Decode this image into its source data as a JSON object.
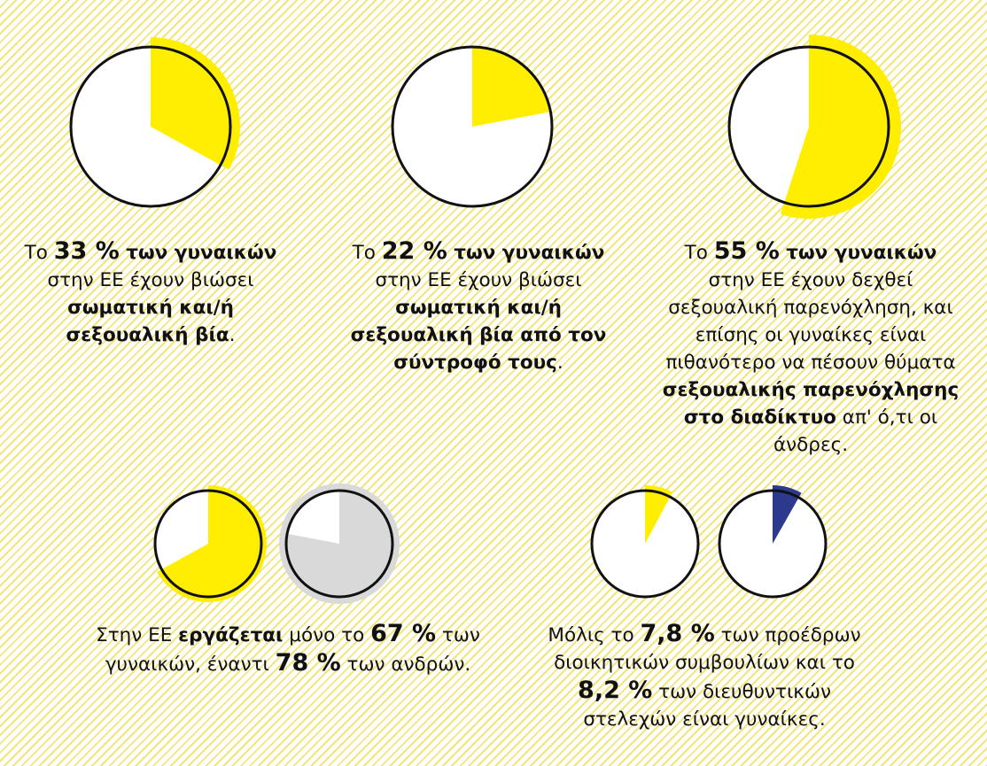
{
  "colors": {
    "women": "#ffee00",
    "men": "#d9d9d9",
    "men_blue": "#2b3a8c",
    "outline": "#111111",
    "background_stripe": "#f3e57a"
  },
  "chart_data": [
    {
      "type": "pie",
      "slices": [
        {
          "name": "",
          "value": 33,
          "color": "#ffee00"
        }
      ],
      "caption": [
        "Το 33 % των γυναικών",
        "στην ΕΕ έχουν βιώσει",
        "σωματική και/ή",
        "σεξουαλική βία."
      ]
    },
    {
      "type": "pie",
      "slices": [
        {
          "name": "",
          "value": 22,
          "color": "#ffee00"
        }
      ],
      "caption": [
        "Το 22 % των γυναικών",
        "στην ΕΕ έχουν βιώσει",
        "σωματική και/ή",
        "σεξουαλική βία από τον",
        "σύντροφό τους."
      ]
    },
    {
      "type": "pie",
      "slices": [
        {
          "name": "",
          "value": 55,
          "color": "#ffee00"
        }
      ],
      "caption": [
        "Το 55 % των γυναικών",
        "στην ΕΕ έχουν δεχθεί",
        "σεξουαλική παρενόχληση, και",
        "επίσης οι γυναίκες είναι",
        "πιθανότερο να πέσουν θύματα",
        "σεξουαλικής παρενόχλησης",
        "στο διαδίκτυο απ' ό,τι οι",
        "άνδρες."
      ]
    },
    {
      "type": "pie",
      "slices": [
        {
          "name": "",
          "value": 67,
          "color": "#ffee00"
        },
        {
          "name": "",
          "value": 78,
          "color": "#d9d9d9"
        }
      ],
      "caption": [
        "Στην ΕΕ εργάζεται μόνο το 67 % των",
        "γυναικών, έναντι 78 % των ανδρών."
      ]
    },
    {
      "type": "pie",
      "slices": [
        {
          "name": "",
          "value": 7.8,
          "color": "#ffee00"
        },
        {
          "name": "",
          "value": 8.2,
          "color": "#2b3a8c"
        }
      ],
      "caption": [
        "Μόλις το 7,8 % των προέδρων",
        "διοικητικών συμβουλίων και το",
        "8,2 % των διευθυντικών",
        "στελεχών είναι γυναίκες."
      ]
    }
  ],
  "captions": {
    "c1": {
      "pre": "Το ",
      "num": "33 %",
      "bold1": " των γυναικών",
      "l2": "στην ΕΕ έχουν βιώσει",
      "l3": "σωματική και/ή",
      "l4b": "σεξουαλική βία",
      "l4": "."
    },
    "c2": {
      "pre": "Το ",
      "num": "22 %",
      "bold1": " των γυναικών",
      "l2": "στην ΕΕ έχουν βιώσει",
      "l3": "σωματική και/ή",
      "l4": "σεξουαλική βία από τον",
      "l5b": "σύντροφό τους",
      "l5": "."
    },
    "c3": {
      "pre": "Το ",
      "num": "55 %",
      "bold1": " των γυναικών",
      "l2": "στην ΕΕ έχουν δεχθεί",
      "l3": "σεξουαλική παρενόχληση, και",
      "l4": "επίσης οι γυναίκες είναι",
      "l5": "πιθανότερο να πέσουν θύματα",
      "l6": "σεξουαλικής παρενόχλησης",
      "l7b": "στο διαδίκτυο",
      "l7": " απ' ό,τι οι",
      "l8": "άνδρες."
    },
    "c4": {
      "a": "Στην ΕΕ ",
      "b": "εργάζεται",
      "c": " μόνο το ",
      "num1": "67 %",
      "d": " των",
      "e": "γυναικών, έναντι ",
      "num2": "78 %",
      "f": " των ανδρών."
    },
    "c5": {
      "a": "Μόλις το ",
      "num1": "7,8 %",
      "b": " των προέδρων",
      "c": "διοικητικών συμβουλίων και το",
      "num2": "8,2 %",
      "d": " των διευθυντικών",
      "e": "στελεχών είναι γυναίκες."
    }
  }
}
